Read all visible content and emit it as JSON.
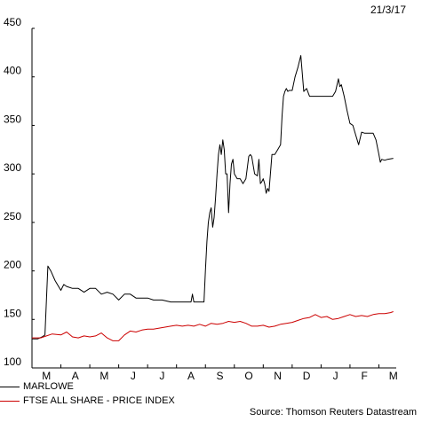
{
  "date_label": "21/3/17",
  "source_label": "Source: Thomson Reuters Datastream",
  "chart_data": {
    "type": "line",
    "xlabel": "",
    "ylabel": "",
    "ylim": [
      100,
      450
    ],
    "xlim": [
      0,
      12.6
    ],
    "yticks": [
      100,
      150,
      200,
      250,
      300,
      350,
      400,
      450
    ],
    "month_ticks": [
      "M",
      "A",
      "M",
      "J",
      "J",
      "A",
      "S",
      "O",
      "N",
      "D",
      "J",
      "F",
      "M"
    ],
    "grid": false,
    "legend_position": "bottom-left",
    "series": [
      {
        "name": "MARLOWE",
        "color": "#000000",
        "x": [
          0.0,
          0.2,
          0.35,
          0.45,
          0.55,
          0.65,
          0.8,
          1.0,
          1.1,
          1.2,
          1.4,
          1.6,
          1.8,
          2.0,
          2.2,
          2.4,
          2.6,
          2.8,
          3.0,
          3.2,
          3.4,
          3.6,
          3.8,
          4.0,
          4.2,
          4.5,
          4.8,
          5.0,
          5.2,
          5.4,
          5.5,
          5.55,
          5.6,
          5.65,
          5.7,
          5.8,
          5.9,
          5.95,
          6.0,
          6.05,
          6.1,
          6.15,
          6.2,
          6.25,
          6.3,
          6.35,
          6.4,
          6.45,
          6.5,
          6.55,
          6.6,
          6.65,
          6.7,
          6.75,
          6.8,
          6.85,
          6.9,
          6.95,
          7.0,
          7.1,
          7.2,
          7.3,
          7.4,
          7.5,
          7.55,
          7.6,
          7.7,
          7.8,
          7.85,
          7.9,
          7.95,
          8.0,
          8.05,
          8.1,
          8.15,
          8.2,
          8.3,
          8.4,
          8.5,
          8.6,
          8.65,
          8.7,
          8.75,
          8.8,
          8.85,
          8.9,
          9.0,
          9.1,
          9.2,
          9.3,
          9.4,
          9.5,
          9.6,
          9.65,
          9.7,
          9.75,
          9.8,
          9.85,
          9.9,
          10.0,
          10.2,
          10.4,
          10.5,
          10.6,
          10.65,
          10.7,
          10.8,
          10.9,
          11.0,
          11.1,
          11.2,
          11.3,
          11.4,
          11.5,
          11.6,
          11.7,
          11.8,
          11.9,
          12.0,
          12.05,
          12.1,
          12.2,
          12.3,
          12.5
        ],
        "y": [
          130,
          130,
          132,
          134,
          205,
          200,
          190,
          180,
          186,
          184,
          182,
          182,
          178,
          182,
          182,
          176,
          178,
          176,
          170,
          176,
          176,
          172,
          172,
          172,
          170,
          170,
          168,
          168,
          168,
          168,
          168,
          176,
          168,
          168,
          168,
          168,
          168,
          168,
          200,
          230,
          250,
          260,
          265,
          245,
          255,
          275,
          300,
          320,
          330,
          320,
          335,
          325,
          300,
          300,
          260,
          290,
          310,
          315,
          300,
          295,
          295,
          290,
          295,
          318,
          320,
          318,
          300,
          298,
          315,
          290,
          292,
          295,
          290,
          280,
          285,
          282,
          320,
          320,
          325,
          330,
          360,
          380,
          385,
          388,
          385,
          386,
          386,
          400,
          410,
          422,
          385,
          388,
          380,
          380,
          380,
          380,
          380,
          380,
          380,
          380,
          380,
          380,
          385,
          398,
          390,
          392,
          380,
          365,
          352,
          350,
          340,
          330,
          343,
          342,
          342,
          342,
          342,
          335,
          320,
          312,
          315,
          314,
          315,
          316
        ]
      },
      {
        "name": "FTSE ALL SHARE - PRICE INDEX",
        "color": "#cc0000",
        "x": [
          0.0,
          0.3,
          0.5,
          0.7,
          1.0,
          1.2,
          1.4,
          1.6,
          1.8,
          2.0,
          2.2,
          2.4,
          2.6,
          2.8,
          3.0,
          3.2,
          3.4,
          3.6,
          3.8,
          4.0,
          4.2,
          4.4,
          4.6,
          4.8,
          5.0,
          5.2,
          5.4,
          5.6,
          5.8,
          6.0,
          6.2,
          6.4,
          6.6,
          6.8,
          7.0,
          7.2,
          7.4,
          7.6,
          7.8,
          8.0,
          8.2,
          8.4,
          8.6,
          8.8,
          9.0,
          9.2,
          9.4,
          9.6,
          9.8,
          10.0,
          10.2,
          10.4,
          10.6,
          10.8,
          11.0,
          11.2,
          11.4,
          11.6,
          11.8,
          12.0,
          12.2,
          12.4,
          12.5
        ],
        "y": [
          131,
          131,
          133,
          135,
          134,
          137,
          132,
          131,
          133,
          132,
          133,
          136,
          131,
          128,
          128,
          134,
          138,
          137,
          139,
          140,
          140,
          141,
          142,
          143,
          144,
          143,
          144,
          143,
          145,
          143,
          146,
          145,
          146,
          148,
          147,
          148,
          146,
          143,
          143,
          144,
          142,
          143,
          145,
          146,
          147,
          149,
          151,
          152,
          155,
          152,
          153,
          150,
          151,
          153,
          155,
          153,
          154,
          153,
          155,
          156,
          156,
          157,
          158
        ]
      }
    ]
  }
}
